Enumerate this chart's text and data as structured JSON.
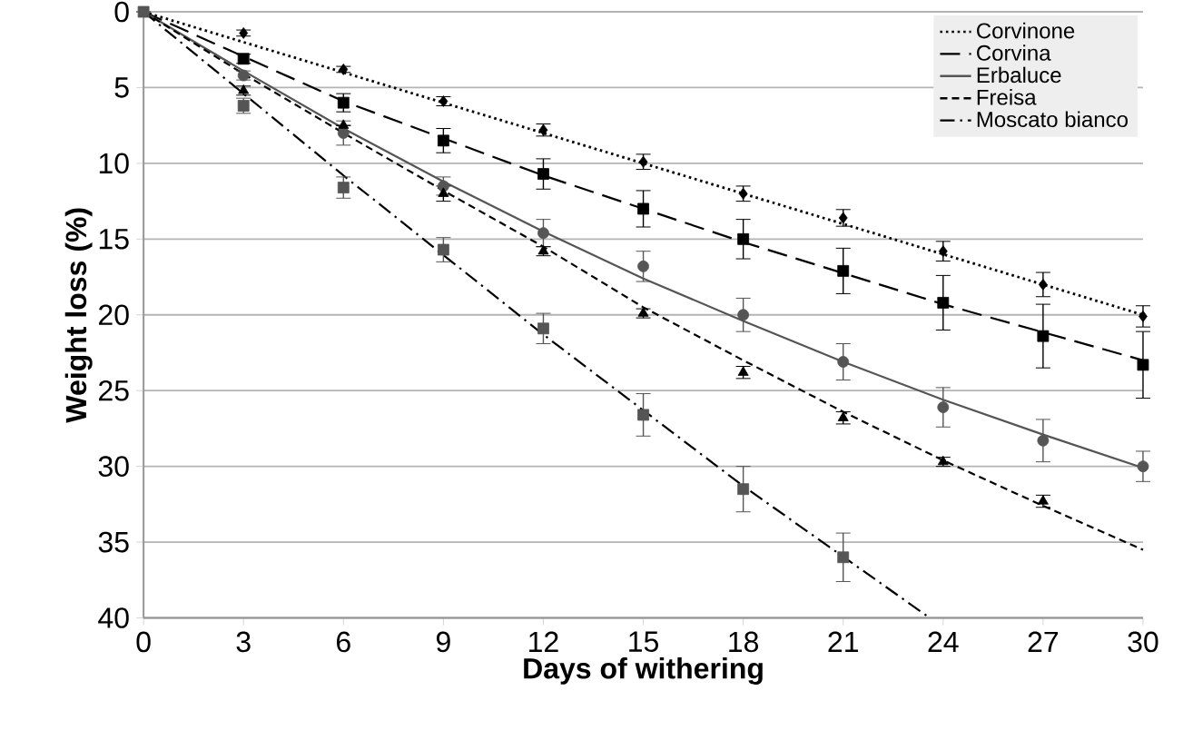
{
  "chart_data": {
    "type": "line",
    "xlabel": "Days of withering",
    "ylabel": "Weight loss (%)",
    "xlim": [
      0,
      30
    ],
    "xticks": [
      0,
      3,
      6,
      9,
      12,
      15,
      18,
      21,
      24,
      27,
      30
    ],
    "ylim": [
      40,
      0
    ],
    "yticks": [
      0,
      5,
      10,
      15,
      20,
      25,
      30,
      35,
      40
    ],
    "grid": "y",
    "legend": "top right",
    "series": [
      {
        "name": "Corvinone",
        "line_style": "dotted",
        "marker": "none",
        "color": "#000000",
        "x": [
          0,
          30
        ],
        "values": [
          0,
          20
        ]
      },
      {
        "name": "Corvina",
        "line_style": "long dashed",
        "marker": "none",
        "color": "#000000",
        "x": [
          0,
          6,
          12,
          18,
          24,
          30
        ],
        "values": [
          0,
          5.9,
          10.8,
          15.2,
          19.3,
          23.0
        ]
      },
      {
        "name": "Erbaluce",
        "line_style": "solid",
        "marker": "none",
        "color": "#555555",
        "x": [
          0,
          3,
          6,
          9,
          12,
          15,
          18,
          21,
          24,
          27,
          30
        ],
        "values": [
          0,
          3.9,
          7.7,
          11.2,
          14.5,
          17.6,
          20.4,
          23.1,
          25.6,
          27.9,
          30.1
        ]
      },
      {
        "name": "Freisa",
        "line_style": "dashed",
        "marker": "none",
        "color": "#000000",
        "x": [
          0,
          3,
          6,
          9,
          12,
          15,
          18,
          21,
          24,
          27,
          30
        ],
        "values": [
          0,
          4.1,
          8.0,
          11.8,
          15.5,
          19.5,
          23.0,
          26.4,
          29.6,
          32.6,
          35.5
        ]
      },
      {
        "name": "Moscato bianco",
        "line_style": "dashdot",
        "marker": "none",
        "color": "#000000",
        "x": [
          0,
          6,
          12,
          18,
          23.6
        ],
        "values": [
          0,
          10.8,
          21.3,
          31.3,
          40
        ]
      },
      {
        "type": "scatter",
        "marker": "diamond",
        "color": "#000000",
        "x": [
          3,
          6,
          9,
          12,
          15,
          18,
          21,
          24,
          27,
          30
        ],
        "values": [
          1.4,
          3.8,
          5.9,
          7.8,
          9.9,
          12.0,
          13.6,
          15.8,
          18.0,
          20.1
        ],
        "errors": [
          0.2,
          0.2,
          0.3,
          0.4,
          0.5,
          0.5,
          0.55,
          0.65,
          0.8,
          0.7
        ]
      },
      {
        "type": "scatter",
        "marker": "square",
        "color": "#000000",
        "x": [
          3,
          6,
          9,
          12,
          15,
          18,
          21,
          24,
          27,
          30
        ],
        "values": [
          3.1,
          6.0,
          8.5,
          10.7,
          13.0,
          15.0,
          17.1,
          19.2,
          21.4,
          23.3
        ],
        "errors": [
          0.3,
          0.6,
          0.8,
          1.0,
          1.2,
          1.3,
          1.5,
          1.8,
          2.1,
          2.2
        ]
      },
      {
        "type": "scatter",
        "marker": "circle",
        "color": "#555555",
        "x": [
          3,
          6,
          9,
          12,
          15,
          18,
          21,
          24,
          27,
          30
        ],
        "values": [
          4.2,
          8.0,
          11.5,
          14.6,
          16.8,
          20.0,
          23.1,
          26.1,
          28.3,
          30.0
        ],
        "errors": [
          0.3,
          0.8,
          0.6,
          0.9,
          1.0,
          1.1,
          1.2,
          1.3,
          1.4,
          1.0
        ]
      },
      {
        "type": "scatter",
        "marker": "triangle",
        "color": "#000000",
        "x": [
          3,
          6,
          9,
          12,
          15,
          18,
          21,
          24,
          27
        ],
        "values": [
          5.2,
          7.5,
          12.0,
          15.8,
          19.9,
          23.8,
          26.8,
          29.7,
          32.3
        ],
        "errors": [
          0.3,
          null,
          0.5,
          0.3,
          0.3,
          0.4,
          0.4,
          0.3,
          0.4
        ]
      },
      {
        "type": "scatter",
        "marker": "square",
        "color": "#555555",
        "x": [
          0,
          3,
          6,
          9,
          12,
          15,
          18,
          21
        ],
        "values": [
          0,
          6.2,
          11.6,
          15.7,
          20.9,
          26.6,
          31.5,
          36.0
        ],
        "errors": [
          null,
          0.5,
          0.7,
          0.8,
          1.0,
          1.4,
          1.5,
          1.6
        ]
      }
    ]
  }
}
